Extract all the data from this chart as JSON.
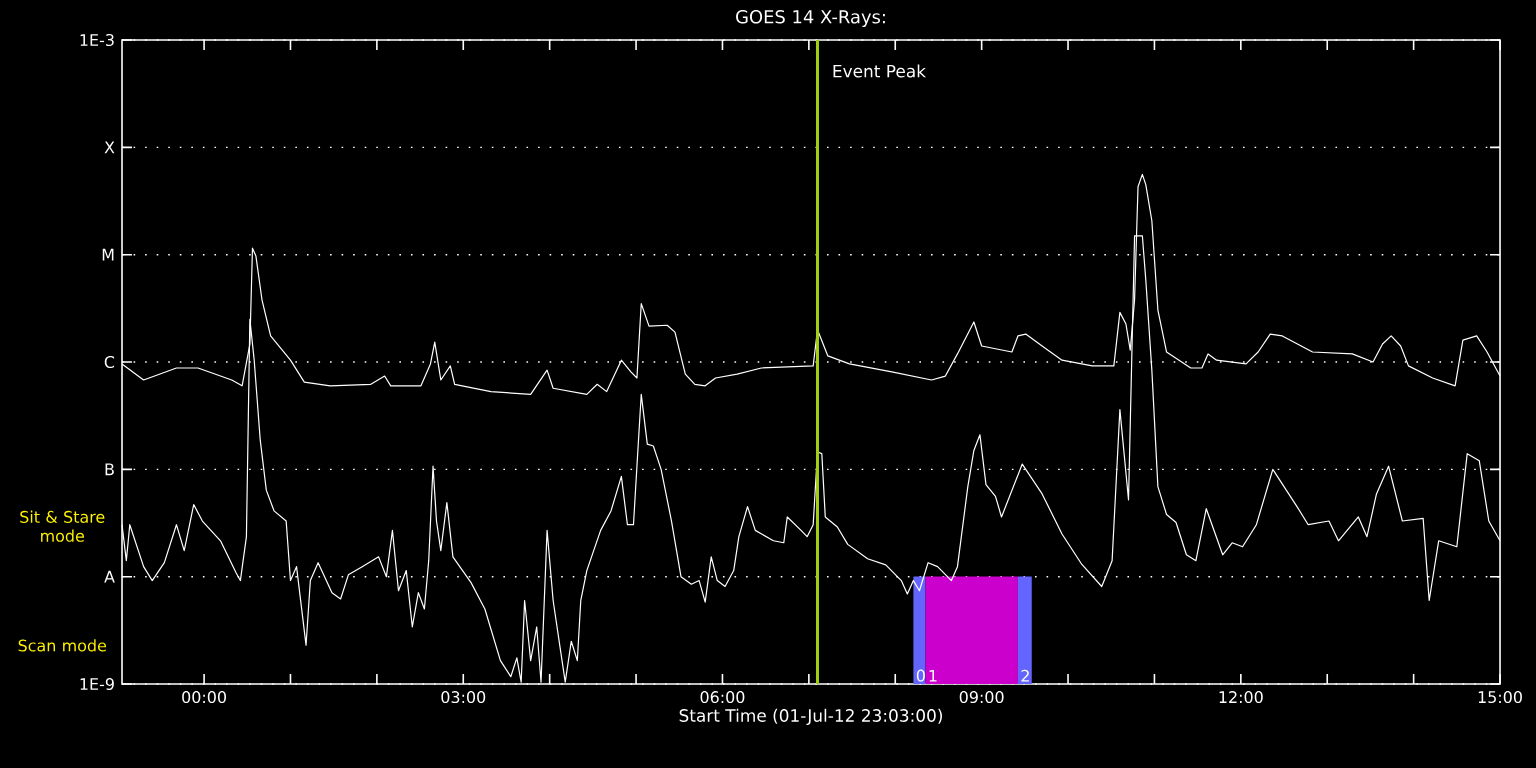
{
  "chart_data": {
    "type": "line",
    "title": "GOES 14 X-Rays:",
    "xlabel": "Start Time (01-Jul-12 23:03:00)",
    "xlim": [
      -0.95,
      15
    ],
    "xticks": [
      {
        "value": 0,
        "label": "00:00"
      },
      {
        "value": 1,
        "label": null
      },
      {
        "value": 2,
        "label": null
      },
      {
        "value": 3,
        "label": "03:00"
      },
      {
        "value": 4,
        "label": null
      },
      {
        "value": 5,
        "label": null
      },
      {
        "value": 6,
        "label": "06:00"
      },
      {
        "value": 7,
        "label": null
      },
      {
        "value": 8,
        "label": null
      },
      {
        "value": 9,
        "label": "09:00"
      },
      {
        "value": 10,
        "label": null
      },
      {
        "value": 11,
        "label": null
      },
      {
        "value": 12,
        "label": "12:00"
      },
      {
        "value": 13,
        "label": null
      },
      {
        "value": 14,
        "label": null
      },
      {
        "value": 15,
        "label": "15:00"
      }
    ],
    "ylim": [
      1e-09,
      0.001
    ],
    "yticks": [
      {
        "value": 1e-09,
        "label": "1E-9"
      },
      {
        "value": 1e-08,
        "label": "A"
      },
      {
        "value": 1e-07,
        "label": "B"
      },
      {
        "value": 1e-06,
        "label": "C"
      },
      {
        "value": 1e-05,
        "label": "M"
      },
      {
        "value": 0.0001,
        "label": "X"
      },
      {
        "value": 0.001,
        "label": "1E-3"
      }
    ],
    "log": "y",
    "grid": "y",
    "series": [
      {
        "color": "#ffffff",
        "x": [
          -0.95,
          -0.7,
          -0.32,
          -0.07,
          0.32,
          0.44,
          0.53,
          0.56,
          0.6,
          0.67,
          0.77,
          1.0,
          1.16,
          1.46,
          1.93,
          2.09,
          2.16,
          2.51,
          2.62,
          2.67,
          2.74,
          2.85,
          2.9,
          3.32,
          3.78,
          3.97,
          4.04,
          4.43,
          4.55,
          4.66,
          4.83,
          4.94,
          5.01,
          5.06,
          5.15,
          5.36,
          5.45,
          5.57,
          5.68,
          5.8,
          5.92,
          6.17,
          6.45,
          7.05,
          7.1,
          7.22,
          7.47,
          7.96,
          8.42,
          8.58,
          8.72,
          8.91,
          9.0,
          9.35,
          9.42,
          9.51,
          9.7,
          9.93,
          10.28,
          10.53,
          10.6,
          10.67,
          10.72,
          10.77,
          10.81,
          10.86,
          10.9,
          10.97,
          11.04,
          11.14,
          11.42,
          11.55,
          11.62,
          11.72,
          12.06,
          12.2,
          12.34,
          12.48,
          12.83,
          13.29,
          13.53,
          13.64,
          13.74,
          13.85,
          13.94,
          14.22,
          14.48,
          14.57,
          14.73,
          14.85,
          15.0
        ],
        "values": [
          9.6e-07,
          6.8e-07,
          8.8e-07,
          8.8e-07,
          6.8e-07,
          6e-07,
          1.47e-06,
          1.15e-05,
          9.7e-06,
          3.8e-06,
          1.75e-06,
          1.04e-06,
          6.5e-07,
          6e-07,
          6.2e-07,
          7.4e-07,
          6e-07,
          6e-07,
          9.6e-07,
          1.53e-06,
          6.8e-07,
          9.2e-07,
          6.2e-07,
          5.3e-07,
          5e-07,
          8.4e-07,
          5.7e-07,
          5e-07,
          6.2e-07,
          5.3e-07,
          1.04e-06,
          8.1e-07,
          7.1e-07,
          3.5e-06,
          2.16e-06,
          2.2e-06,
          1.9e-06,
          7.7e-07,
          6.2e-07,
          6e-07,
          7.1e-07,
          7.7e-07,
          8.8e-07,
          9.2e-07,
          2e-06,
          1.14e-06,
          9.6e-07,
          8.1e-07,
          6.8e-07,
          7.4e-07,
          1.19e-06,
          2.36e-06,
          1.41e-06,
          1.24e-06,
          1.75e-06,
          1.82e-06,
          1.41e-06,
          1.04e-06,
          9.2e-07,
          9.2e-07,
          2.9e-06,
          2.26e-06,
          1.29e-06,
          3.8e-06,
          4.3e-05,
          5.6e-05,
          4.5e-05,
          2.07e-05,
          3.05e-06,
          1.24e-06,
          8.8e-07,
          8.8e-07,
          1.19e-06,
          1.04e-06,
          9.6e-07,
          1.24e-06,
          1.82e-06,
          1.75e-06,
          1.24e-06,
          1.19e-06,
          1e-06,
          1.47e-06,
          1.75e-06,
          1.41e-06,
          9.2e-07,
          7.1e-07,
          6e-07,
          1.6e-06,
          1.75e-06,
          1.24e-06,
          7.4e-07
        ]
      },
      {
        "color": "#ffffff",
        "x": [
          -0.95,
          -0.9,
          -0.86,
          -0.7,
          -0.6,
          -0.46,
          -0.32,
          -0.23,
          -0.12,
          -0.02,
          0.19,
          0.37,
          0.42,
          0.49,
          0.53,
          0.58,
          0.65,
          0.72,
          0.81,
          0.95,
          1.0,
          1.07,
          1.18,
          1.23,
          1.32,
          1.48,
          1.58,
          1.67,
          1.83,
          2.02,
          2.11,
          2.18,
          2.25,
          2.34,
          2.41,
          2.48,
          2.55,
          2.6,
          2.65,
          2.69,
          2.74,
          2.81,
          2.88,
          3.09,
          3.25,
          3.43,
          3.55,
          3.62,
          3.67,
          3.71,
          3.78,
          3.85,
          3.9,
          3.97,
          4.04,
          4.11,
          4.18,
          4.25,
          4.32,
          4.36,
          4.43,
          4.59,
          4.71,
          4.83,
          4.9,
          4.97,
          5.01,
          5.06,
          5.13,
          5.2,
          5.29,
          5.41,
          5.52,
          5.64,
          5.73,
          5.8,
          5.87,
          5.94,
          6.03,
          6.13,
          6.19,
          6.29,
          6.38,
          6.59,
          6.71,
          6.75,
          6.91,
          6.98,
          7.05,
          7.1,
          7.15,
          7.19,
          7.33,
          7.45,
          7.68,
          7.89,
          8.07,
          8.14,
          8.21,
          8.28,
          8.38,
          8.49,
          8.65,
          8.72,
          8.84,
          8.91,
          8.98,
          9.05,
          9.16,
          9.23,
          9.47,
          9.7,
          9.93,
          10.16,
          10.39,
          10.51,
          10.6,
          10.7,
          10.77,
          10.86,
          10.9,
          10.97,
          11.04,
          11.14,
          11.25,
          11.37,
          11.48,
          11.6,
          11.79,
          11.9,
          12.02,
          12.18,
          12.37,
          12.65,
          12.78,
          13.02,
          13.13,
          13.36,
          13.46,
          13.57,
          13.71,
          13.87,
          14.11,
          14.18,
          14.29,
          14.5,
          14.62,
          14.76,
          14.87,
          15.0
        ],
        "values": [
          3.05e-08,
          1.41e-08,
          3.05e-08,
          1.24e-08,
          9.2e-09,
          1.35e-08,
          3.05e-08,
          1.75e-08,
          4.7e-08,
          3.3e-08,
          2.16e-08,
          1.09e-08,
          9.2e-09,
          2.36e-08,
          2.5e-06,
          1.04e-06,
          1.87e-07,
          6.4e-08,
          4.1e-08,
          3.3e-08,
          9.2e-09,
          1.24e-08,
          2.3e-09,
          9.2e-09,
          1.35e-08,
          7.1e-09,
          6.2e-09,
          1.04e-08,
          1.24e-08,
          1.53e-08,
          1e-08,
          2.7e-08,
          7.4e-09,
          1.14e-08,
          3.4e-09,
          7.1e-09,
          5e-09,
          1.41e-08,
          1.07e-07,
          3.3e-08,
          1.75e-08,
          4.9e-08,
          1.53e-08,
          8.8e-09,
          5e-09,
          1.65e-09,
          1.17e-09,
          1.75e-09,
          1.04e-09,
          6e-09,
          1.65e-09,
          3.4e-09,
          1.04e-09,
          2.7e-08,
          6e-09,
          2.5e-09,
          1.04e-09,
          2.5e-09,
          1.65e-09,
          6e-09,
          1.14e-08,
          2.7e-08,
          4.1e-08,
          8.6e-08,
          3.05e-08,
          3.05e-08,
          1.07e-07,
          5e-07,
          1.72e-07,
          1.65e-07,
          1e-07,
          3.3e-08,
          1e-08,
          8.5e-09,
          9.2e-09,
          5.8e-09,
          1.53e-08,
          9.2e-09,
          8.1e-09,
          1.14e-08,
          2.36e-08,
          4.5e-08,
          2.7e-08,
          2.16e-08,
          2.07e-08,
          3.6e-08,
          2.7e-08,
          2.36e-08,
          3.05e-08,
          1.45e-07,
          1.4e-07,
          3.6e-08,
          2.9e-08,
          2e-08,
          1.47e-08,
          1.29e-08,
          9.2e-09,
          6.9e-09,
          9.2e-09,
          7.4e-09,
          1.35e-08,
          1.24e-08,
          9.2e-09,
          1.24e-08,
          6.9e-08,
          1.5e-07,
          2.1e-07,
          7.2e-08,
          5.6e-08,
          3.6e-08,
          1.12e-07,
          5.9e-08,
          2.5e-08,
          1.3e-08,
          8.1e-09,
          1.41e-08,
          3.6e-07,
          5.2e-08,
          1.5e-05,
          1.5e-05,
          5.8e-06,
          8.4e-07,
          6.9e-08,
          3.8e-08,
          3.2e-08,
          1.6e-08,
          1.41e-08,
          4.3e-08,
          1.6e-08,
          2.07e-08,
          1.9e-08,
          3.05e-08,
          1e-07,
          4.5e-08,
          3.05e-08,
          3.3e-08,
          2.16e-08,
          3.6e-08,
          2.36e-08,
          5.9e-08,
          1.07e-07,
          3.3e-08,
          3.5e-08,
          6e-09,
          2.16e-08,
          1.9e-08,
          1.4e-07,
          1.2e-07,
          3.3e-08,
          2.16e-08
        ]
      }
    ],
    "ref_lines": [
      {
        "axis": "x",
        "value": 7.1,
        "label": "Event Peak",
        "color": "#a0d010"
      }
    ],
    "bands": [
      {
        "axis": "x",
        "from": 8.21,
        "to": 8.35,
        "label": "0",
        "color": "#6464ff"
      },
      {
        "axis": "x",
        "from": 8.35,
        "to": 9.42,
        "label": "1",
        "color": "#cc00cc"
      },
      {
        "axis": "x",
        "from": 9.42,
        "to": 9.58,
        "label": "2",
        "color": "#6464ff"
      }
    ],
    "annotations": [
      "Sit & Stare mode",
      "Scan mode"
    ]
  }
}
